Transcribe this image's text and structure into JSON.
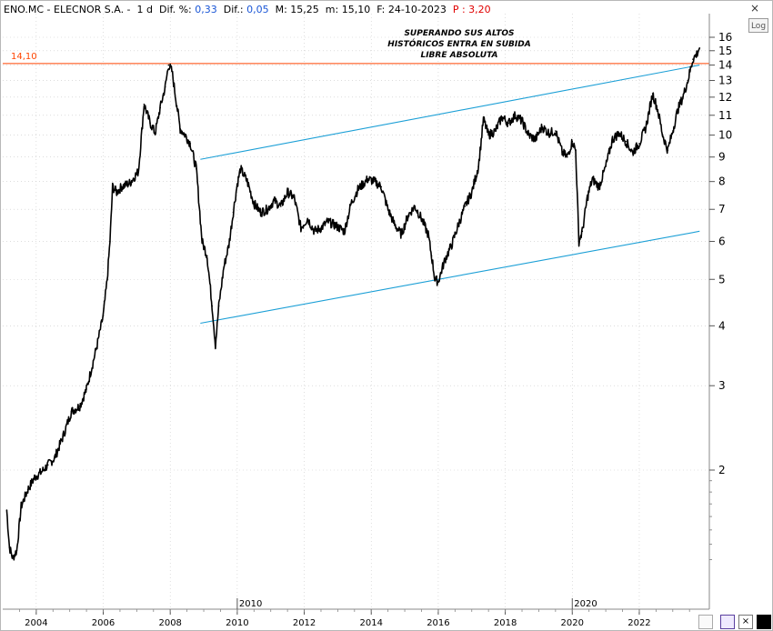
{
  "header": {
    "ticker": "ENO.MC - ELECNOR S.A. -",
    "interval": "1 d",
    "diff_pct_label": "Dif. %:",
    "diff_pct_value": "0,33",
    "diff_label": "Dif.:",
    "diff_value": "0,05",
    "max_label": "M:",
    "max_value": "15,25",
    "min_label": "m:",
    "min_value": "15,10",
    "date_label": "F:",
    "date_value": "24-10-2023",
    "p_label": "P :",
    "p_value": "3,20"
  },
  "buttons": {
    "close": "×",
    "log": "Log",
    "tool3": "×"
  },
  "annotation": {
    "lines": [
      "SUPERANDO SUS ALTOS",
      "HISTÓRICOS ENTRA EN SUBIDA",
      "LIBRE ABSOLUTA"
    ]
  },
  "colors": {
    "price": "#000000",
    "horizontal_line": "#ff4400",
    "channel": "#1b9fd6",
    "grid": "#c8c8c8"
  },
  "chart_data": {
    "type": "line",
    "title": "",
    "y_scale": "log",
    "ylim": [
      1.2,
      17
    ],
    "y_ticks": [
      2,
      3,
      4,
      5,
      6,
      7,
      8,
      9,
      10,
      11,
      12,
      13,
      14,
      15,
      16
    ],
    "x_ticks": [
      "2004",
      "2006",
      "2008",
      "2010",
      "2012",
      "2014",
      "2016",
      "2018",
      "2020",
      "2022"
    ],
    "x_range": [
      2003.0,
      2023.82
    ],
    "year_markers": [
      "2010",
      "2020"
    ],
    "horizontal_line": {
      "value": 14.1,
      "label": "14,10"
    },
    "channel_upper": [
      [
        2008.9,
        8.9
      ],
      [
        2023.8,
        14.0
      ]
    ],
    "channel_lower": [
      [
        2008.9,
        4.05
      ],
      [
        2023.8,
        6.3
      ]
    ],
    "series": [
      {
        "points": [
          [
            2003.12,
            1.65
          ],
          [
            2003.2,
            1.38
          ],
          [
            2003.3,
            1.31
          ],
          [
            2003.42,
            1.36
          ],
          [
            2003.55,
            1.68
          ],
          [
            2003.75,
            1.82
          ],
          [
            2003.95,
            1.93
          ],
          [
            2004.15,
            1.98
          ],
          [
            2004.35,
            2.05
          ],
          [
            2004.55,
            2.12
          ],
          [
            2004.8,
            2.35
          ],
          [
            2005.05,
            2.65
          ],
          [
            2005.3,
            2.72
          ],
          [
            2005.5,
            2.95
          ],
          [
            2005.8,
            3.6
          ],
          [
            2006.0,
            4.2
          ],
          [
            2006.12,
            5.0
          ],
          [
            2006.2,
            6.0
          ],
          [
            2006.28,
            7.8
          ],
          [
            2006.4,
            7.6
          ],
          [
            2006.55,
            7.8
          ],
          [
            2006.8,
            7.95
          ],
          [
            2007.05,
            8.4
          ],
          [
            2007.22,
            11.6
          ],
          [
            2007.4,
            10.6
          ],
          [
            2007.55,
            10.1
          ],
          [
            2007.7,
            11.4
          ],
          [
            2007.85,
            12.6
          ],
          [
            2007.95,
            14.0
          ],
          [
            2008.05,
            13.6
          ],
          [
            2008.2,
            11.5
          ],
          [
            2008.3,
            10.3
          ],
          [
            2008.45,
            10.0
          ],
          [
            2008.6,
            9.6
          ],
          [
            2008.78,
            8.5
          ],
          [
            2008.95,
            6.0
          ],
          [
            2009.1,
            5.6
          ],
          [
            2009.25,
            4.4
          ],
          [
            2009.35,
            3.65
          ],
          [
            2009.45,
            4.4
          ],
          [
            2009.6,
            5.3
          ],
          [
            2009.75,
            5.9
          ],
          [
            2009.88,
            6.9
          ],
          [
            2010.0,
            7.9
          ],
          [
            2010.1,
            8.5
          ],
          [
            2010.3,
            8.0
          ],
          [
            2010.5,
            7.2
          ],
          [
            2010.7,
            6.9
          ],
          [
            2010.9,
            7.0
          ],
          [
            2011.1,
            7.3
          ],
          [
            2011.3,
            7.1
          ],
          [
            2011.5,
            7.6
          ],
          [
            2011.7,
            7.4
          ],
          [
            2011.9,
            6.4
          ],
          [
            2012.1,
            6.7
          ],
          [
            2012.3,
            6.3
          ],
          [
            2012.5,
            6.4
          ],
          [
            2012.7,
            6.6
          ],
          [
            2012.9,
            6.5
          ],
          [
            2013.2,
            6.3
          ],
          [
            2013.4,
            7.2
          ],
          [
            2013.6,
            7.7
          ],
          [
            2013.9,
            8.1
          ],
          [
            2014.1,
            8.0
          ],
          [
            2014.3,
            7.8
          ],
          [
            2014.5,
            7.0
          ],
          [
            2014.7,
            6.5
          ],
          [
            2014.9,
            6.2
          ],
          [
            2015.1,
            6.8
          ],
          [
            2015.3,
            7.1
          ],
          [
            2015.5,
            6.7
          ],
          [
            2015.7,
            6.2
          ],
          [
            2015.8,
            5.6
          ],
          [
            2015.9,
            5.0
          ],
          [
            2016.0,
            4.95
          ],
          [
            2016.2,
            5.5
          ],
          [
            2016.4,
            5.9
          ],
          [
            2016.6,
            6.5
          ],
          [
            2016.8,
            7.1
          ],
          [
            2017.0,
            7.6
          ],
          [
            2017.2,
            8.6
          ],
          [
            2017.35,
            10.8
          ],
          [
            2017.5,
            10.0
          ],
          [
            2017.7,
            10.2
          ],
          [
            2017.9,
            10.9
          ],
          [
            2018.1,
            10.6
          ],
          [
            2018.3,
            11.0
          ],
          [
            2018.5,
            10.7
          ],
          [
            2018.7,
            10.0
          ],
          [
            2018.9,
            9.8
          ],
          [
            2019.1,
            10.4
          ],
          [
            2019.3,
            10.1
          ],
          [
            2019.5,
            10.2
          ],
          [
            2019.7,
            9.2
          ],
          [
            2019.85,
            9.0
          ],
          [
            2020.0,
            9.7
          ],
          [
            2020.1,
            9.3
          ],
          [
            2020.2,
            6.0
          ],
          [
            2020.3,
            6.3
          ],
          [
            2020.45,
            7.4
          ],
          [
            2020.6,
            8.1
          ],
          [
            2020.8,
            7.8
          ],
          [
            2021.0,
            8.6
          ],
          [
            2021.2,
            9.8
          ],
          [
            2021.4,
            10.1
          ],
          [
            2021.6,
            9.7
          ],
          [
            2021.8,
            9.2
          ],
          [
            2022.0,
            9.6
          ],
          [
            2022.2,
            10.4
          ],
          [
            2022.4,
            12.2
          ],
          [
            2022.55,
            11.3
          ],
          [
            2022.7,
            10.0
          ],
          [
            2022.85,
            9.3
          ],
          [
            2023.0,
            10.2
          ],
          [
            2023.15,
            11.3
          ],
          [
            2023.3,
            12.0
          ],
          [
            2023.45,
            13.0
          ],
          [
            2023.6,
            14.4
          ],
          [
            2023.7,
            14.7
          ],
          [
            2023.8,
            15.2
          ]
        ]
      }
    ]
  }
}
